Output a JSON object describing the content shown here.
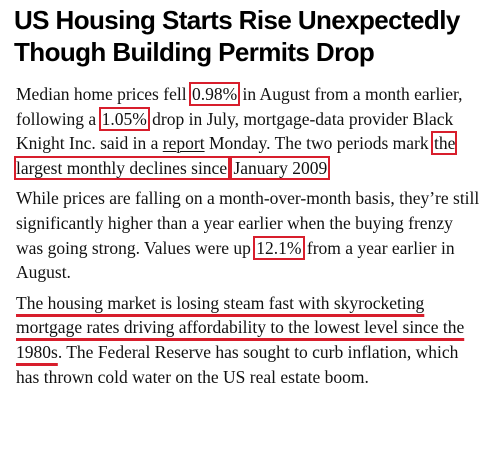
{
  "article": {
    "headline": "US Housing Starts Rise Unexpectedly Though Building Permits Drop",
    "p1": {
      "t1": "Median home prices fell ",
      "v1": "0.98%",
      "t2": " in August from a month earlier, following a ",
      "v2": "1.05%",
      "t3": " drop in July, mortgage-data provider Black Knight Inc. said in a ",
      "link": "report",
      "t4": " Monday. The two periods mark ",
      "h1": "the largest monthly declines since",
      "t5": " ",
      "h2": "January 2009"
    },
    "p2": {
      "t1": "While prices are falling on a month-over-month basis, they’re still significantly higher than a year earlier when the buying frenzy was going strong. Values were up ",
      "v1": "12.1%",
      "t2": " from a year earlier in August."
    },
    "p3": {
      "u1": "The housing market is losing steam fast with skyrocketing mortgage rates driving affordability to the lowest level since the 1980s",
      "t1": ". The Federal Reserve has sought to curb inflation, which has thrown cold water on the US real estate boom."
    }
  },
  "colors": {
    "highlight": "#d81e2c",
    "text": "#111111"
  }
}
